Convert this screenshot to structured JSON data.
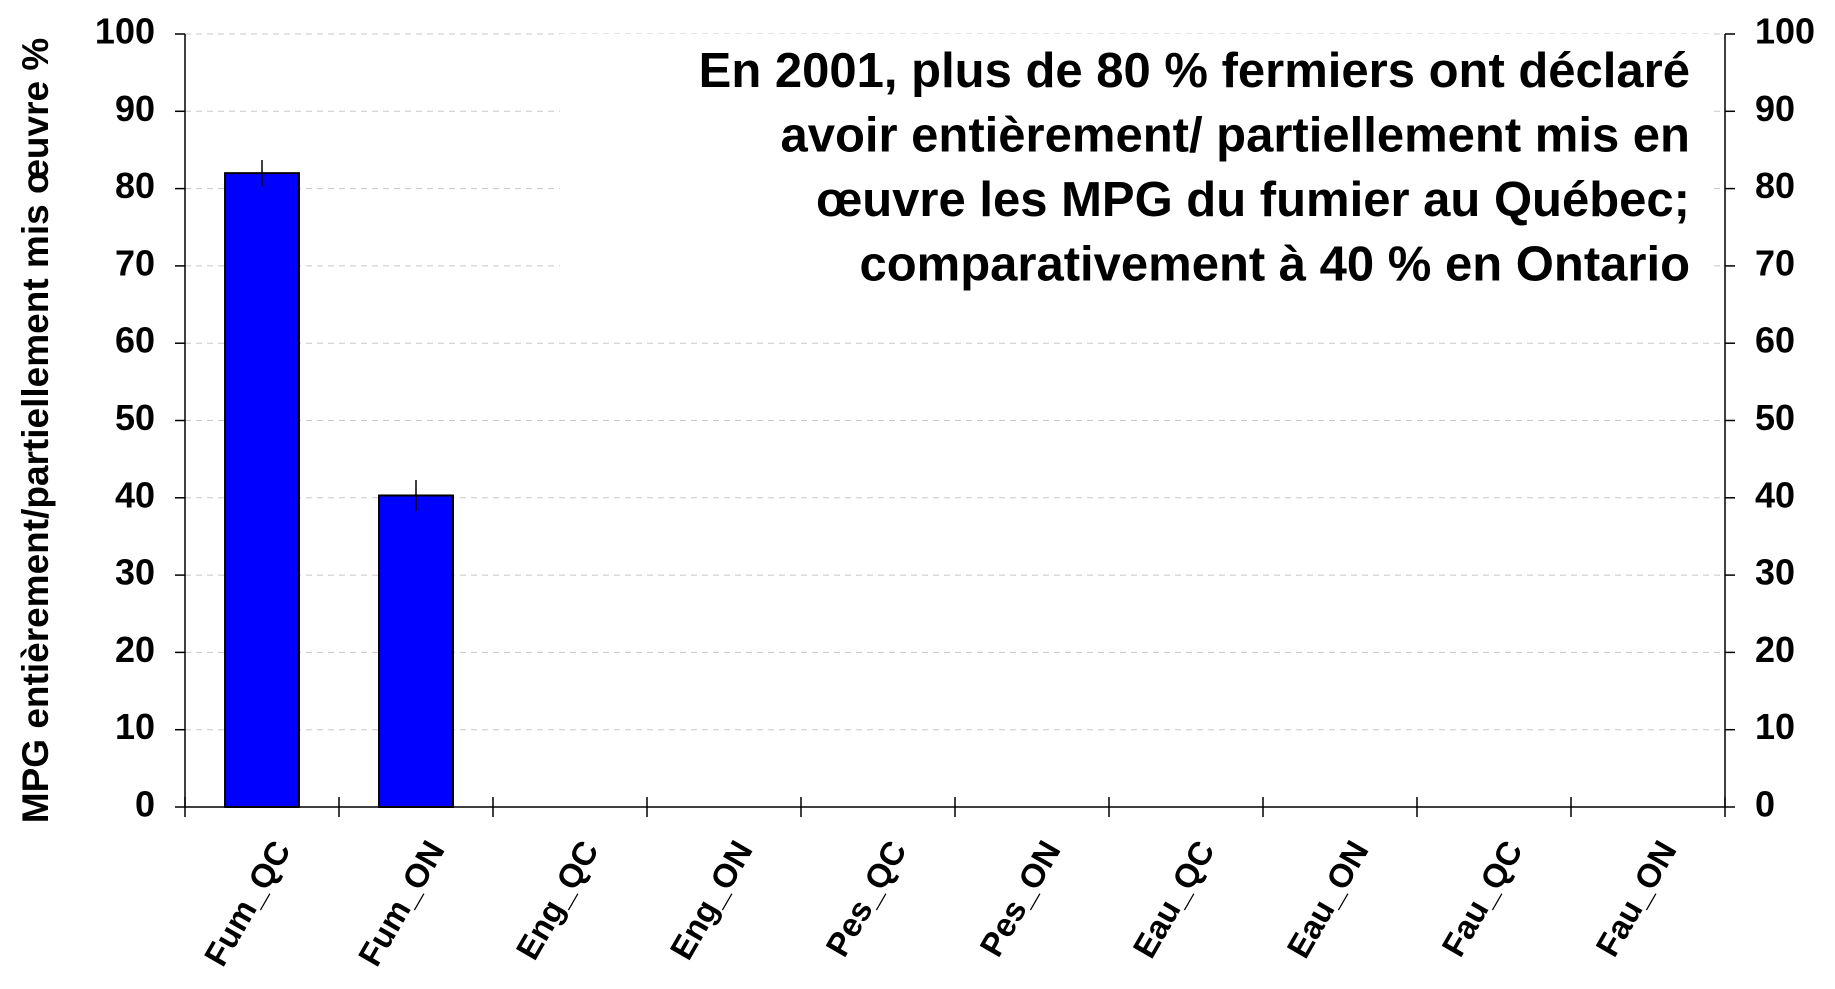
{
  "chart_data": {
    "type": "bar",
    "ylabel": "MPG entièrement/partiellement mis œuvre %",
    "annotation": [
      "En 2001, plus de 80 % fermiers ont déclaré",
      "avoir entièrement/ partiellement mis en",
      "œuvre les MPG du fumier au Québec;",
      "comparativement à 40 % en Ontario"
    ],
    "categories": [
      "Fum_QC",
      "Fum_ON",
      "Eng_QC",
      "Eng_ON",
      "Pes_QC",
      "Pes_ON",
      "Eau_QC",
      "Eau_ON",
      "Fau_QC",
      "Fau_ON"
    ],
    "values": [
      82,
      40.3,
      null,
      null,
      null,
      null,
      null,
      null,
      null,
      null
    ],
    "errors": [
      1.7,
      2,
      null,
      null,
      null,
      null,
      null,
      null,
      null,
      null
    ],
    "color": "#0000ff",
    "ylim": [
      0,
      100
    ],
    "yticks": [
      0,
      10,
      20,
      30,
      40,
      50,
      60,
      70,
      80,
      90,
      100
    ],
    "grid": true
  }
}
